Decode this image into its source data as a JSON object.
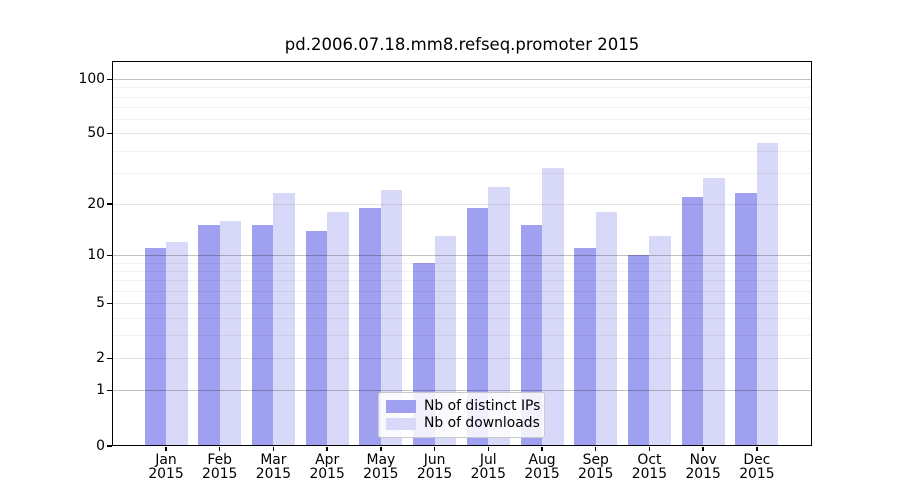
{
  "title": "pd.2006.07.18.mm8.refseq.promoter 2015",
  "colors": {
    "ips_bar": "#a0a0f0",
    "downloads_bar": "#d8d8f8",
    "axis": "#000000",
    "legend_border": "#c9c9c9",
    "background": "#ffffff"
  },
  "legend": {
    "items": [
      {
        "label": "Nb of distinct IPs",
        "series": "ips"
      },
      {
        "label": "Nb of downloads",
        "series": "downloads"
      }
    ]
  },
  "y_axis": {
    "tick_labels": [
      "0",
      "1",
      "2",
      "5",
      "10",
      "20",
      "50",
      "100"
    ],
    "tick_values": [
      0,
      1,
      2,
      5,
      10,
      20,
      50,
      100
    ],
    "major_grid_values": [
      1,
      10,
      100
    ],
    "mid_grid_values": [
      2,
      5,
      20,
      50
    ],
    "minor_grid_values": [
      3,
      4,
      6,
      7,
      8,
      9,
      30,
      40,
      60,
      70,
      80,
      90
    ]
  },
  "x_axis": {
    "months": [
      "Jan",
      "Feb",
      "Mar",
      "Apr",
      "May",
      "Jun",
      "Jul",
      "Aug",
      "Sep",
      "Oct",
      "Nov",
      "Dec"
    ],
    "year": "2015"
  },
  "chart_data": {
    "type": "bar",
    "title": "pd.2006.07.18.mm8.refseq.promoter 2015",
    "categories": [
      "Jan 2015",
      "Feb 2015",
      "Mar 2015",
      "Apr 2015",
      "May 2015",
      "Jun 2015",
      "Jul 2015",
      "Aug 2015",
      "Sep 2015",
      "Oct 2015",
      "Nov 2015",
      "Dec 2015"
    ],
    "series": [
      {
        "name": "Nb of distinct IPs",
        "color": "#a0a0f0",
        "values": [
          11,
          15,
          15,
          14,
          19,
          9,
          19,
          15,
          11,
          10,
          22,
          23
        ]
      },
      {
        "name": "Nb of downloads",
        "color": "#d8d8f8",
        "values": [
          12,
          16,
          23,
          18,
          24,
          13,
          25,
          32,
          18,
          13,
          28,
          44
        ]
      }
    ],
    "xlabel": "",
    "ylabel": "",
    "yscale": "log10(1+value)",
    "ylim": [
      0,
      125
    ],
    "grid": true,
    "legend_position": "lower center"
  }
}
